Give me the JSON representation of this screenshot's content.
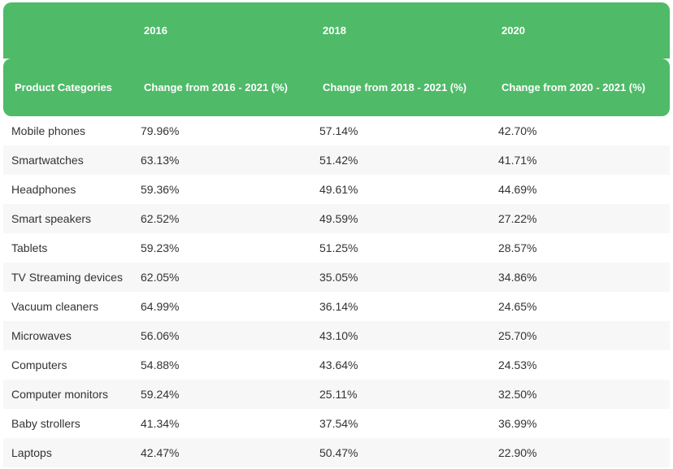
{
  "table": {
    "header_years": [
      "2016",
      "2018",
      "2020"
    ],
    "header_columns": [
      "Product Categories",
      "Change from 2016 - 2021 (%)",
      "Change from 2018 - 2021 (%)",
      "Change from 2020 - 2021 (%)"
    ],
    "rows": [
      [
        "Mobile phones",
        "79.96%",
        "57.14%",
        "42.70%"
      ],
      [
        "Smartwatches",
        "63.13%",
        "51.42%",
        "41.71%"
      ],
      [
        "Headphones",
        "59.36%",
        "49.61%",
        "44.69%"
      ],
      [
        "Smart speakers",
        "62.52%",
        "49.59%",
        "27.22%"
      ],
      [
        "Tablets",
        "59.23%",
        "51.25%",
        "28.57%"
      ],
      [
        "TV Streaming devices",
        "62.05%",
        "35.05%",
        "34.86%"
      ],
      [
        "Vacuum cleaners",
        "64.99%",
        "36.14%",
        "24.65%"
      ],
      [
        "Microwaves",
        "56.06%",
        "43.10%",
        "25.70%"
      ],
      [
        "Computers",
        "54.88%",
        "43.64%",
        "24.53%"
      ],
      [
        "Computer monitors",
        "59.24%",
        "25.11%",
        "32.50%"
      ],
      [
        "Baby strollers",
        "41.34%",
        "37.54%",
        "36.99%"
      ],
      [
        "Laptops",
        "42.47%",
        "50.47%",
        "22.90%"
      ]
    ]
  }
}
